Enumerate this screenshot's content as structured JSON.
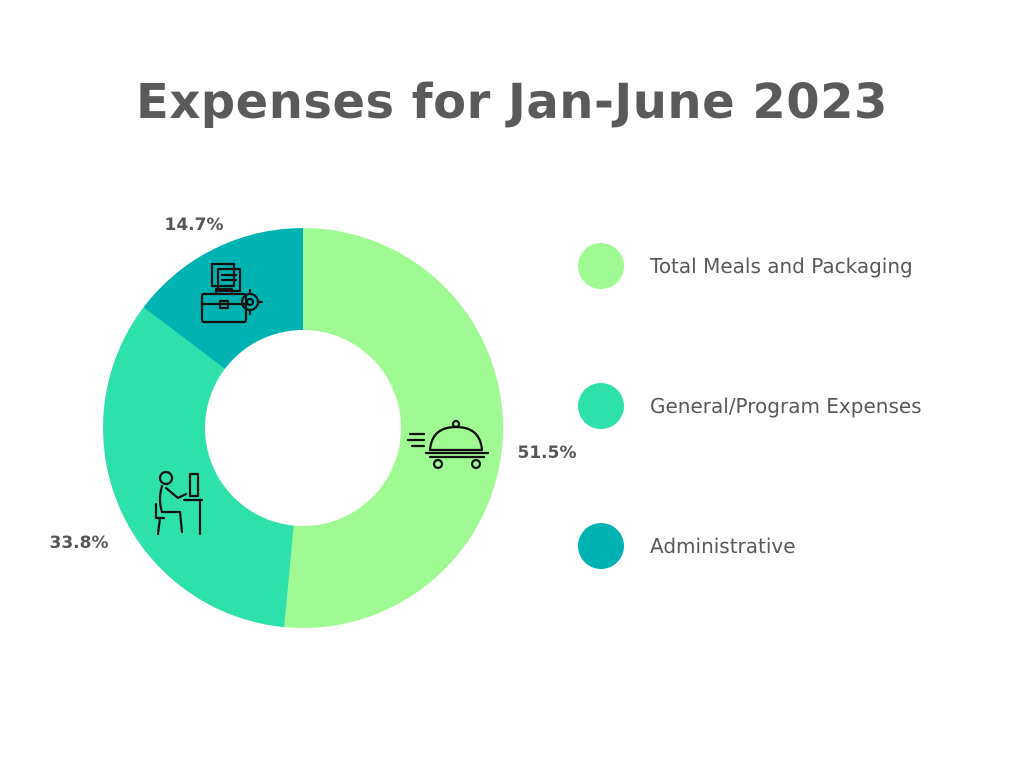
{
  "chart_data": {
    "type": "pie",
    "title": "Expenses for Jan-June 2023",
    "categories": [
      "Total Meals and Packaging",
      "General/Program Expenses",
      "Administrative"
    ],
    "values": [
      51.5,
      33.8,
      14.7
    ],
    "value_labels": [
      "51.5%",
      "33.8%",
      "14.7%"
    ],
    "colors": [
      "#a0fa94",
      "#2ee0aa",
      "#00b3b3"
    ],
    "icons": [
      "food-cloche-delivery-icon",
      "office-worker-desk-icon",
      "briefcase-documents-gear-icon"
    ],
    "donut": true,
    "legend_position": "right"
  }
}
